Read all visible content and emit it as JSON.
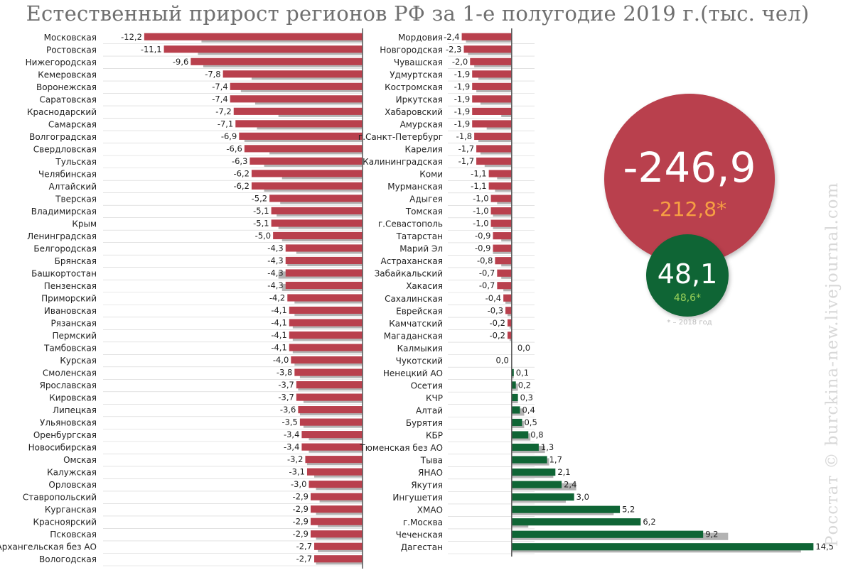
{
  "chart_data": {
    "type": "bar",
    "title": "Естественный прирост регионов РФ за 1-е полугодие 2019 г.(тыс. чел)",
    "left_panel": {
      "categories": [
        "Московская",
        "Ростовская",
        "Нижегородская",
        "Кемеровская",
        "Воронежская",
        "Саратовская",
        "Краснодарский",
        "Самарская",
        "Волгоградская",
        "Свердловская",
        "Тульская",
        "Челябинская",
        "Алтайский",
        "Тверская",
        "Владимирская",
        "Крым",
        "Ленинградская",
        "Белгородская",
        "Брянская",
        "Башкортостан",
        "Пензенская",
        "Приморский",
        "Ивановская",
        "Рязанская",
        "Пермский",
        "Тамбовская",
        "Курская",
        "Смоленская",
        "Ярославская",
        "Кировская",
        "Липецкая",
        "Ульяновская",
        "Оренбургская",
        "Новосибирская",
        "Омская",
        "Калужская",
        "Орловская",
        "Ставропольский",
        "Курганская",
        "Красноярский",
        "Псковская",
        "Архангельская без АО",
        "Вологодская"
      ],
      "values_2019": [
        -12.2,
        -11.1,
        -9.6,
        -7.8,
        -7.4,
        -7.4,
        -7.2,
        -7.1,
        -6.9,
        -6.6,
        -6.3,
        -6.2,
        -6.2,
        -5.2,
        -5.1,
        -5.1,
        -5.0,
        -4.3,
        -4.3,
        -4.3,
        -4.3,
        -4.2,
        -4.1,
        -4.1,
        -4.1,
        -4.1,
        -4.0,
        -3.8,
        -3.7,
        -3.7,
        -3.6,
        -3.5,
        -3.4,
        -3.4,
        -3.2,
        -3.1,
        -3.0,
        -2.9,
        -2.9,
        -2.9,
        -2.9,
        -2.7,
        -2.7
      ],
      "labels_2019": [
        "-12,2",
        "-11,1",
        "-9,6",
        "-7,8",
        "-7,4",
        "-7,4",
        "-7,2",
        "-7,1",
        "-6,9",
        "-6,6",
        "-6,3",
        "-6,2",
        "-6,2",
        "-5,2",
        "-5,1",
        "-5,1",
        "-5,0",
        "-4,3",
        "-4,3",
        "-4,3",
        "-4,3",
        "-4,2",
        "-4,1",
        "-4,1",
        "-4,1",
        "-4,1",
        "-4,0",
        "-3,8",
        "-3,7",
        "-3,7",
        "-3,6",
        "-3,5",
        "-3,4",
        "-3,4",
        "-3,2",
        "-3,1",
        "-3,0",
        "-2,9",
        "-2,9",
        "-2,9",
        "-2,9",
        "-2,7",
        "-2,7"
      ],
      "values_2018": [
        -9.0,
        -9.2,
        -8.9,
        -6.2,
        -6.8,
        -6.0,
        -4.7,
        -5.9,
        -6.6,
        -5.2,
        -5.5,
        -4.5,
        -5.5,
        -4.6,
        -4.8,
        -4.7,
        -4.5,
        -3.7,
        -4.2,
        -4.7,
        -4.5,
        -3.8,
        -3.8,
        -3.9,
        -3.9,
        -3.9,
        -3.8,
        -3.5,
        -3.6,
        -3.3,
        -3.5,
        -3.3,
        -3.0,
        -3.0,
        -3.1,
        -2.7,
        -2.6,
        -2.4,
        -2.6,
        -2.5,
        -2.6,
        -2.5,
        -2.6
      ],
      "x_range": [
        -14.5,
        0
      ]
    },
    "right_panel": {
      "categories": [
        "Мордовия",
        "Новгородская",
        "Чувашская",
        "Удмуртская",
        "Костромская",
        "Иркутская",
        "Хабаровский",
        "Амурская",
        "г.Санкт-Петербург",
        "Карелия",
        "Калининградская",
        "Коми",
        "Мурманская",
        "Адыгея",
        "Томская",
        "г.Севастополь",
        "Татарстан",
        "Марий Эл",
        "Астраханская",
        "Забайкальский",
        "Хакасия",
        "Сахалинская",
        "Еврейская",
        "Камчатский",
        "Магаданская",
        "Калмыкия",
        "Чукотский",
        "Ненецкий АО",
        "Осетия",
        "КЧР",
        "Алтай",
        "Бурятия",
        "КБР",
        "Тюменская без АО",
        "Тыва",
        "ЯНАО",
        "Якутия",
        "Ингушетия",
        "ХМАО",
        "г.Москва",
        "Чеченская",
        "Дагестан"
      ],
      "values_2019": [
        -2.4,
        -2.3,
        -2.0,
        -1.9,
        -1.9,
        -1.9,
        -1.9,
        -1.9,
        -1.8,
        -1.7,
        -1.7,
        -1.1,
        -1.1,
        -1.0,
        -1.0,
        -1.0,
        -0.9,
        -0.9,
        -0.8,
        -0.7,
        -0.7,
        -0.4,
        -0.3,
        -0.2,
        -0.2,
        0.0,
        0.0,
        0.1,
        0.2,
        0.3,
        0.4,
        0.5,
        0.8,
        1.3,
        1.7,
        2.1,
        2.4,
        3.0,
        5.2,
        6.2,
        9.2,
        14.5
      ],
      "labels_2019": [
        "-2,4",
        "-2,3",
        "-2,0",
        "-1,9",
        "-1,9",
        "-1,9",
        "-1,9",
        "-1,9",
        "-1,8",
        "-1,7",
        "-1,7",
        "-1,1",
        "-1,1",
        "-1,0",
        "-1,0",
        "-1,0",
        "-0,9",
        "-0,9",
        "-0,8",
        "-0,7",
        "-0,7",
        "-0,4",
        "-0,3",
        "-0,2",
        "-0,2",
        "0,0",
        "0,0",
        "0,1",
        "0,2",
        "0,3",
        "0,4",
        "0,5",
        "0,8",
        "1,3",
        "1,7",
        "2,1",
        "2,4",
        "3,0",
        "5,2",
        "6,2",
        "9,2",
        "14,5"
      ],
      "values_2018": [
        -2.2,
        -2.1,
        -1.8,
        -1.6,
        -1.7,
        -1.5,
        -0.5,
        -1.2,
        -1.6,
        -1.5,
        -1.3,
        -0.7,
        -0.8,
        -0.7,
        -0.9,
        -0.9,
        -0.5,
        -0.9,
        -0.5,
        -0.5,
        -0.4,
        -0.3,
        -0.2,
        -0.1,
        -0.1,
        0.0,
        0.0,
        0.1,
        0.3,
        0.3,
        0.6,
        0.6,
        0.9,
        1.6,
        1.8,
        2.0,
        3.1,
        2.6,
        4.9,
        0.8,
        10.4,
        13.9
      ],
      "x_range": [
        -3.0,
        15.0
      ]
    },
    "legend": "none",
    "grid": false
  },
  "totals": {
    "natural_decrease": "-246,9",
    "natural_decrease_2018": "-212,8*",
    "natural_increase": "48,1",
    "natural_increase_2018": "48,6*",
    "footnote": "* – 2018 год"
  },
  "watermark": "Росстат © burckina-new.livejournal.com",
  "colors": {
    "negative": "#b9404d",
    "positive": "#0f6535",
    "prev_year": "#b3b3b3",
    "axis": "#555555",
    "row_line": "#d2d2d2",
    "prev_negative_text": "#f7a043",
    "prev_positive_text": "#9ad15a"
  }
}
